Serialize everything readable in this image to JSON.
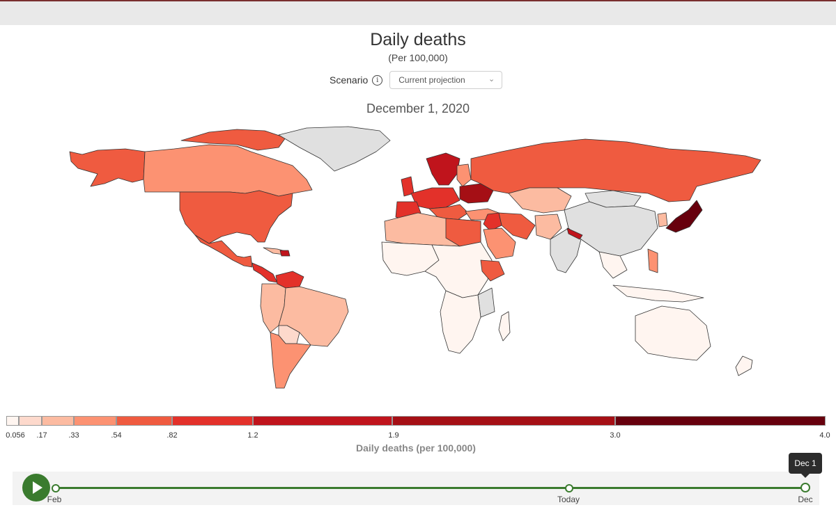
{
  "header": {
    "title": "Daily deaths",
    "subtitle": "(Per 100,000)"
  },
  "scenario": {
    "label": "Scenario",
    "info_icon": "info-icon",
    "selected": "Current projection",
    "chevron_icon": "chevron-down-icon"
  },
  "map": {
    "date": "December 1, 2020"
  },
  "legend": {
    "title": "Daily deaths (per 100,000)",
    "ticks": [
      "0.056",
      ".17",
      ".33",
      ".54",
      ".82",
      "1.2",
      "1.9",
      "3.0",
      "4.0"
    ],
    "colors": [
      "#fff5f0",
      "#fdd9cc",
      "#fcbba1",
      "#fc9272",
      "#ef5b40",
      "#e3312a",
      "#c0141c",
      "#a50f15",
      "#67000d"
    ],
    "no_data_color": "#e0e0e0"
  },
  "timeline": {
    "play_icon": "play-icon",
    "start_label": "Feb",
    "mid_label": "Today",
    "end_label": "Dec",
    "tooltip": "Dec 1",
    "progress": 1.0
  }
}
